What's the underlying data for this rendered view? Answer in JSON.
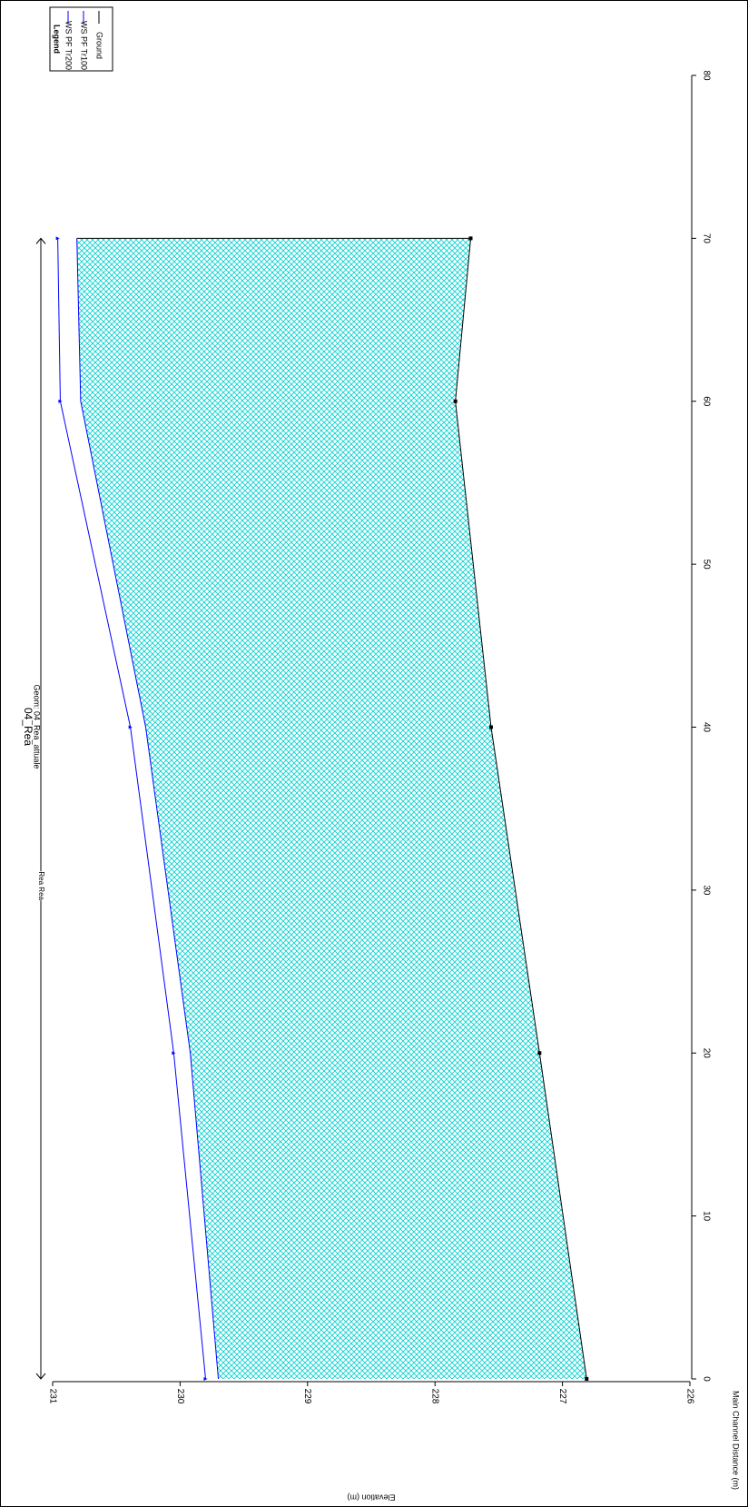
{
  "chart_data": {
    "type": "line",
    "title": "04_Rea",
    "subtitle": "Geom: 04_Rea_attuale",
    "x_label": "Main Channel Distance (m)",
    "y_label": "Elevation (m)",
    "annotation": "Rea Rea",
    "legend_title": "Legend",
    "x": [
      0,
      20,
      40,
      60,
      70
    ],
    "series": [
      {
        "name": "WS PF Tr200",
        "color": "#0000ff",
        "values": [
          229.8,
          230.05,
          230.39,
          230.94,
          230.96
        ]
      },
      {
        "name": "WS PF Tr100",
        "color": "#0000ff",
        "values": [
          229.7,
          229.92,
          230.27,
          230.78,
          230.81
        ],
        "fill": "#00d8d8"
      },
      {
        "name": "Ground",
        "color": "#000000",
        "values": [
          226.81,
          227.18,
          227.56,
          227.84,
          227.72
        ]
      }
    ],
    "xlim": [
      0,
      80
    ],
    "xticks": [
      0,
      10,
      20,
      30,
      40,
      50,
      60,
      70,
      80
    ],
    "ylim": [
      226,
      231
    ],
    "yticks": [
      226,
      227,
      228,
      229,
      230,
      231
    ]
  }
}
